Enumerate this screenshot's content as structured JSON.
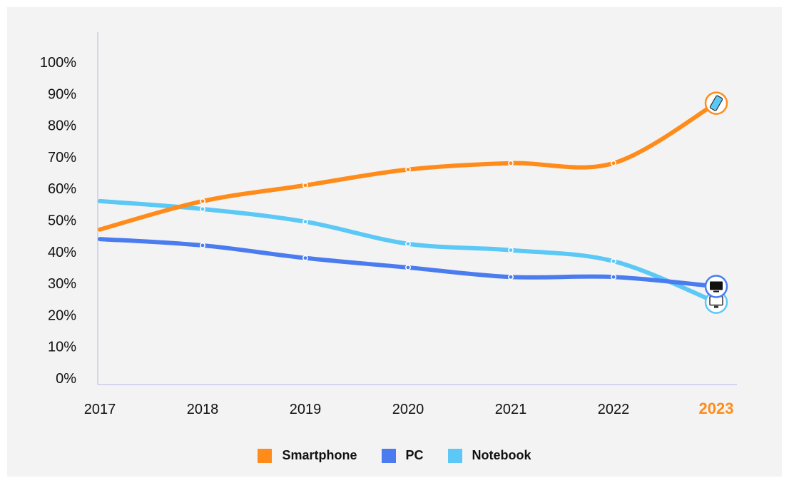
{
  "chart_data": {
    "type": "line",
    "x": [
      "2017",
      "2018",
      "2019",
      "2020",
      "2021",
      "2022",
      "2023"
    ],
    "highlight_x": "2023",
    "ylim": [
      0,
      100
    ],
    "yticks": [
      "0%",
      "10%",
      "20%",
      "30%",
      "40%",
      "50%",
      "60%",
      "70%",
      "80%",
      "90%",
      "100%"
    ],
    "grid": false,
    "legend_position": "bottom-center",
    "series": [
      {
        "name": "Smartphone",
        "color": "#ff8c1a",
        "values": [
          47,
          56,
          61,
          66,
          68,
          68,
          87
        ],
        "end_icon": "smartphone-icon"
      },
      {
        "name": "PC",
        "color": "#4a7cf0",
        "values": [
          44,
          42,
          38,
          35,
          32,
          32,
          29
        ],
        "end_icon": "desktop-pc-icon"
      },
      {
        "name": "Notebook",
        "color": "#5cc8f5",
        "values": [
          56,
          53.5,
          49.5,
          42.5,
          40.5,
          37,
          24
        ],
        "end_icon": "laptop-icon"
      }
    ]
  }
}
